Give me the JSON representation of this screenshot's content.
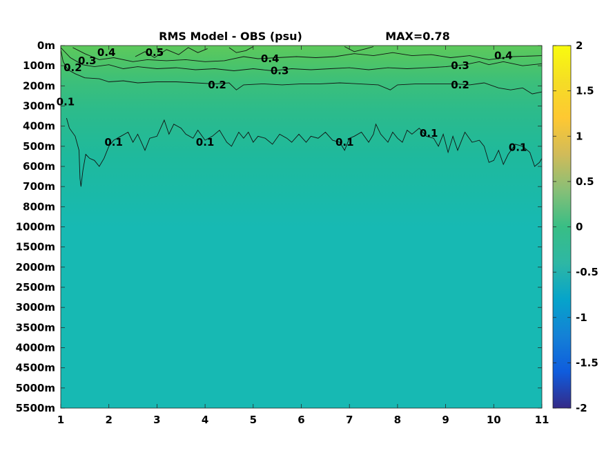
{
  "chart_data": {
    "type": "heatmap",
    "title": "RMS Model - OBS (psu)",
    "max_label": "MAX=0.78",
    "x": {
      "ticks": [
        1,
        2,
        3,
        4,
        5,
        6,
        7,
        8,
        9,
        10,
        11
      ],
      "range": [
        1,
        11
      ]
    },
    "y": {
      "tick_labels": [
        "0m",
        "100m",
        "200m",
        "300m",
        "400m",
        "500m",
        "600m",
        "700m",
        "800m",
        "1000m",
        "1500m",
        "2000m",
        "2500m",
        "3000m",
        "3500m",
        "4000m",
        "4500m",
        "5000m",
        "5500m"
      ],
      "reversed": true
    },
    "colorbar": {
      "range": [
        -2,
        2
      ],
      "ticks": [
        -2,
        -1.5,
        -1,
        -0.5,
        0,
        0.5,
        1,
        1.5,
        2
      ],
      "tick_labels": [
        "-2",
        "-1.5",
        "-1",
        "-0.5",
        "0",
        "0.5",
        "1",
        "1.5",
        "2"
      ],
      "colormap": "parula"
    },
    "contour_levels": [
      0.1,
      0.2,
      0.3,
      0.4,
      0.5
    ],
    "contour_labels": [
      {
        "text": "0.4",
        "x": 1.95,
        "y": 0.35
      },
      {
        "text": "0.3",
        "x": 1.55,
        "y": 0.75
      },
      {
        "text": "0.2",
        "x": 1.25,
        "y": 1.1
      },
      {
        "text": "0.5",
        "x": 2.95,
        "y": 0.35
      },
      {
        "text": "0.4",
        "x": 5.35,
        "y": 0.65
      },
      {
        "text": "0.3",
        "x": 5.55,
        "y": 1.25
      },
      {
        "text": "0.2",
        "x": 4.25,
        "y": 1.95
      },
      {
        "text": "0.3",
        "x": 9.3,
        "y": 1.0
      },
      {
        "text": "0.2",
        "x": 9.3,
        "y": 1.95
      },
      {
        "text": "0.4",
        "x": 10.2,
        "y": 0.5
      },
      {
        "text": "0.1",
        "x": 1.1,
        "y": 2.8
      },
      {
        "text": "0.1",
        "x": 2.1,
        "y": 4.8
      },
      {
        "text": "0.1",
        "x": 4.0,
        "y": 4.8
      },
      {
        "text": "0.1",
        "x": 6.9,
        "y": 4.8
      },
      {
        "text": "0.1",
        "x": 8.65,
        "y": 4.35
      },
      {
        "text": "0.1",
        "x": 10.5,
        "y": 5.05
      }
    ],
    "contours": [
      {
        "level": 0.1,
        "points": [
          [
            1.12,
            3.6
          ],
          [
            1.18,
            4.1
          ],
          [
            1.3,
            4.5
          ],
          [
            1.38,
            5.2
          ],
          [
            1.4,
            6.6
          ],
          [
            1.42,
            7.0
          ],
          [
            1.46,
            6.2
          ],
          [
            1.52,
            5.4
          ],
          [
            1.6,
            5.6
          ],
          [
            1.7,
            5.7
          ],
          [
            1.8,
            6.0
          ],
          [
            1.9,
            5.6
          ],
          [
            2.0,
            5.0
          ],
          [
            2.1,
            4.7
          ],
          [
            2.25,
            4.5
          ],
          [
            2.4,
            4.3
          ],
          [
            2.5,
            4.8
          ],
          [
            2.6,
            4.4
          ],
          [
            2.75,
            5.2
          ],
          [
            2.85,
            4.6
          ],
          [
            3.0,
            4.5
          ],
          [
            3.15,
            3.7
          ],
          [
            3.25,
            4.4
          ],
          [
            3.35,
            3.9
          ],
          [
            3.5,
            4.1
          ],
          [
            3.6,
            4.4
          ],
          [
            3.75,
            4.6
          ],
          [
            3.85,
            4.2
          ],
          [
            4.0,
            4.7
          ],
          [
            4.15,
            4.5
          ],
          [
            4.3,
            4.2
          ],
          [
            4.45,
            4.8
          ],
          [
            4.55,
            5.0
          ],
          [
            4.7,
            4.3
          ],
          [
            4.8,
            4.6
          ],
          [
            4.9,
            4.3
          ],
          [
            5.0,
            4.8
          ],
          [
            5.1,
            4.5
          ],
          [
            5.25,
            4.6
          ],
          [
            5.4,
            4.9
          ],
          [
            5.55,
            4.4
          ],
          [
            5.7,
            4.6
          ],
          [
            5.8,
            4.8
          ],
          [
            5.95,
            4.4
          ],
          [
            6.1,
            4.8
          ],
          [
            6.2,
            4.5
          ],
          [
            6.35,
            4.6
          ],
          [
            6.5,
            4.3
          ],
          [
            6.65,
            4.7
          ],
          [
            6.8,
            4.8
          ],
          [
            6.9,
            5.2
          ],
          [
            7.0,
            4.6
          ],
          [
            7.1,
            4.5
          ],
          [
            7.25,
            4.3
          ],
          [
            7.4,
            4.8
          ],
          [
            7.5,
            4.4
          ],
          [
            7.55,
            3.9
          ],
          [
            7.65,
            4.4
          ],
          [
            7.8,
            4.8
          ],
          [
            7.9,
            4.3
          ],
          [
            8.0,
            4.6
          ],
          [
            8.1,
            4.8
          ],
          [
            8.2,
            4.2
          ],
          [
            8.3,
            4.4
          ],
          [
            8.45,
            4.1
          ],
          [
            8.6,
            4.5
          ],
          [
            8.75,
            4.6
          ],
          [
            8.85,
            5.0
          ],
          [
            8.95,
            4.4
          ],
          [
            9.05,
            5.3
          ],
          [
            9.15,
            4.5
          ],
          [
            9.25,
            5.2
          ],
          [
            9.4,
            4.3
          ],
          [
            9.55,
            4.8
          ],
          [
            9.7,
            4.7
          ],
          [
            9.8,
            5.0
          ],
          [
            9.9,
            5.8
          ],
          [
            10.0,
            5.7
          ],
          [
            10.1,
            5.2
          ],
          [
            10.2,
            5.9
          ],
          [
            10.3,
            5.4
          ],
          [
            10.45,
            4.9
          ],
          [
            10.6,
            5.0
          ],
          [
            10.75,
            5.3
          ],
          [
            10.85,
            6.0
          ],
          [
            10.95,
            5.8
          ],
          [
            11.0,
            5.6
          ]
        ]
      },
      {
        "level": 0.2,
        "points": [
          [
            1.0,
            0.2
          ],
          [
            1.05,
            0.8
          ],
          [
            1.15,
            1.2
          ],
          [
            1.3,
            1.4
          ],
          [
            1.5,
            1.6
          ],
          [
            1.8,
            1.65
          ],
          [
            2.0,
            1.8
          ],
          [
            2.3,
            1.75
          ],
          [
            2.6,
            1.85
          ],
          [
            3.0,
            1.8
          ],
          [
            3.4,
            1.8
          ],
          [
            3.8,
            1.85
          ],
          [
            4.2,
            1.9
          ],
          [
            4.5,
            1.85
          ],
          [
            4.65,
            2.2
          ],
          [
            4.8,
            1.95
          ],
          [
            5.2,
            1.9
          ],
          [
            5.6,
            1.95
          ],
          [
            6.0,
            1.9
          ],
          [
            6.4,
            1.9
          ],
          [
            6.8,
            1.85
          ],
          [
            7.2,
            1.9
          ],
          [
            7.6,
            1.95
          ],
          [
            7.85,
            2.2
          ],
          [
            8.0,
            1.95
          ],
          [
            8.4,
            1.9
          ],
          [
            8.8,
            1.9
          ],
          [
            9.2,
            1.9
          ],
          [
            9.5,
            1.95
          ],
          [
            9.8,
            1.85
          ],
          [
            10.1,
            2.1
          ],
          [
            10.35,
            2.2
          ],
          [
            10.6,
            2.1
          ],
          [
            10.8,
            2.4
          ],
          [
            11.0,
            2.3
          ]
        ]
      },
      {
        "level": 0.3,
        "points": [
          [
            1.0,
            0.1
          ],
          [
            1.2,
            0.6
          ],
          [
            1.45,
            0.95
          ],
          [
            1.7,
            1.05
          ],
          [
            2.0,
            0.95
          ],
          [
            2.3,
            1.15
          ],
          [
            2.6,
            1.05
          ],
          [
            3.0,
            1.15
          ],
          [
            3.4,
            1.1
          ],
          [
            3.8,
            1.2
          ],
          [
            4.2,
            1.15
          ],
          [
            4.6,
            1.25
          ],
          [
            5.0,
            1.15
          ],
          [
            5.4,
            1.25
          ],
          [
            5.8,
            1.15
          ],
          [
            6.2,
            1.2
          ],
          [
            6.6,
            1.15
          ],
          [
            7.0,
            1.1
          ],
          [
            7.4,
            1.2
          ],
          [
            7.8,
            1.1
          ],
          [
            8.2,
            1.15
          ],
          [
            8.6,
            1.1
          ],
          [
            9.0,
            1.05
          ],
          [
            9.4,
            0.95
          ],
          [
            9.7,
            0.8
          ],
          [
            9.9,
            0.95
          ],
          [
            10.2,
            0.8
          ],
          [
            10.6,
            1.0
          ],
          [
            11.0,
            0.9
          ]
        ]
      },
      {
        "level": 0.4,
        "points": [
          [
            1.25,
            0.1
          ],
          [
            1.5,
            0.4
          ],
          [
            1.8,
            0.7
          ],
          [
            2.1,
            0.6
          ],
          [
            2.5,
            0.8
          ],
          [
            2.8,
            0.7
          ],
          [
            3.2,
            0.75
          ],
          [
            3.6,
            0.7
          ],
          [
            4.0,
            0.8
          ],
          [
            4.4,
            0.75
          ],
          [
            4.8,
            0.55
          ],
          [
            5.1,
            0.65
          ],
          [
            5.5,
            0.6
          ],
          [
            5.9,
            0.55
          ],
          [
            6.3,
            0.6
          ],
          [
            6.7,
            0.55
          ],
          [
            7.1,
            0.4
          ],
          [
            7.5,
            0.5
          ],
          [
            7.9,
            0.35
          ],
          [
            8.3,
            0.5
          ],
          [
            8.7,
            0.45
          ],
          [
            9.1,
            0.6
          ],
          [
            9.5,
            0.5
          ],
          [
            9.9,
            0.7
          ],
          [
            10.4,
            0.55
          ],
          [
            11.0,
            0.5
          ]
        ]
      },
      {
        "level": 0.5,
        "points": [
          [
            2.55,
            0.55
          ],
          [
            2.75,
            0.3
          ],
          [
            2.95,
            0.6
          ],
          [
            3.2,
            0.2
          ],
          [
            3.45,
            0.45
          ],
          [
            3.65,
            0.1
          ],
          [
            3.85,
            0.35
          ],
          [
            4.05,
            0.15
          ]
        ]
      },
      {
        "level": 0.4,
        "points": [
          [
            4.5,
            0.1
          ],
          [
            4.65,
            0.35
          ],
          [
            4.85,
            0.25
          ],
          [
            5.0,
            0.05
          ]
        ]
      },
      {
        "level": 0.4,
        "points": [
          [
            6.9,
            0.05
          ],
          [
            7.1,
            0.3
          ],
          [
            7.35,
            0.15
          ],
          [
            7.5,
            0.05
          ]
        ]
      }
    ]
  }
}
